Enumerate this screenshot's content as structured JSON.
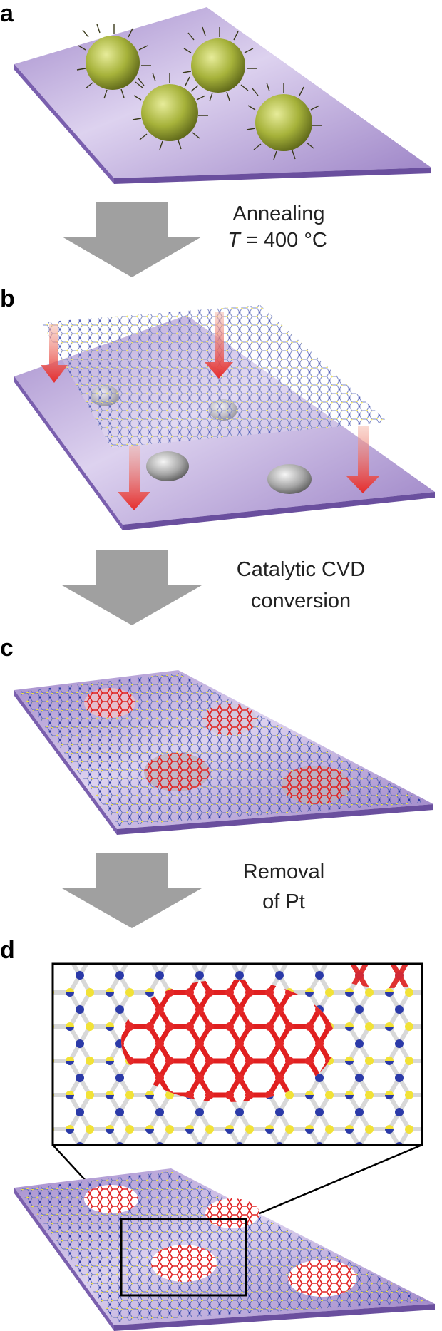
{
  "panels": {
    "a": "a",
    "b": "b",
    "c": "c",
    "d": "d"
  },
  "steps": {
    "step1": {
      "line1": "Annealing",
      "line2_var": "T",
      "line2_rest": " = 400 °C"
    },
    "step2": {
      "line1": "Catalytic CVD",
      "line2": "conversion"
    },
    "step3": {
      "line1": "Removal",
      "line2": "of Pt"
    }
  },
  "colors": {
    "substrate_top": "#b8a6d8",
    "substrate_edge": "#7a5fae",
    "arrow_gray": "#a0a0a0",
    "boron": "#f2e236",
    "nitrogen": "#2b3aa8",
    "graphene": "#e02020",
    "nanoparticle": "#a8b43c",
    "pt_island": "#9a9a9a",
    "transfer_arrow": "#e8373a"
  },
  "icons": {
    "process_arrow": "down-arrow-icon",
    "transfer_arrow": "red-down-arrow-icon"
  }
}
